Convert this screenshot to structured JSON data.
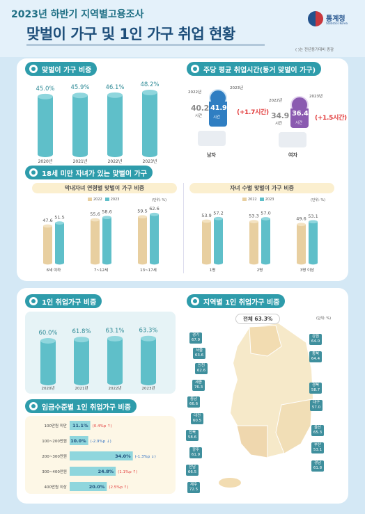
{
  "header": {
    "year_title": "2023년 하반기 지역별고용조사",
    "main_title": "맞벌이 가구 및 1인 가구 취업 현황",
    "agency": "통계청",
    "agency_en": "Statistics Korea",
    "note": "( )는 전년동기대비 증감"
  },
  "sections": {
    "dual_ratio": "맞벌이 가구 비중",
    "weekly_hours": "주당 평균 취업시간(동거 맞벌이 가구)",
    "children": "18세 미만 자녀가 있는 맞벌이 가구",
    "child_age": "막내자녀 연령별 맞벌이 가구 비중",
    "child_count": "자녀 수별 맞벌이 가구 비중",
    "single_ratio": "1인 취업가구 비중",
    "regional": "지역별 1인 취업가구 비중",
    "wage": "임금수준별 1인 취업가구 비중"
  },
  "legend": {
    "y2022": "2022",
    "y2023": "2023",
    "unit": "(단위: %)"
  },
  "hours": {
    "male": {
      "y2022_label": "2022년",
      "y2023_label": "2023년",
      "v2022": "40.2",
      "v2023": "41.9",
      "unit": "시간",
      "change": "(+1.7시간)",
      "label": "남자"
    },
    "female": {
      "y2022_label": "2022년",
      "y2023_label": "2023년",
      "v2022": "34.9",
      "v2023": "36.4",
      "unit": "시간",
      "change": "(+1.5시간)",
      "label": "여자"
    }
  },
  "regional": {
    "total": "전체 63.3%",
    "unit": "(단위: %)",
    "regions": [
      {
        "name": "경기",
        "value": "67.9"
      },
      {
        "name": "서울",
        "value": "63.6"
      },
      {
        "name": "인천",
        "value": "62.6"
      },
      {
        "name": "세종",
        "value": "76.3"
      },
      {
        "name": "충남",
        "value": "66.6"
      },
      {
        "name": "대전",
        "value": "60.5"
      },
      {
        "name": "전북",
        "value": "58.6"
      },
      {
        "name": "광주",
        "value": "61.9"
      },
      {
        "name": "전남",
        "value": "66.5"
      },
      {
        "name": "제주",
        "value": "72.5"
      },
      {
        "name": "강원",
        "value": "64.0"
      },
      {
        "name": "충북",
        "value": "64.4"
      },
      {
        "name": "경북",
        "value": "58.7"
      },
      {
        "name": "대구",
        "value": "57.0"
      },
      {
        "name": "울산",
        "value": "65.3"
      },
      {
        "name": "부산",
        "value": "53.1"
      },
      {
        "name": "경남",
        "value": "61.8"
      }
    ]
  },
  "chart_data": [
    {
      "type": "bar",
      "title": "맞벌이 가구 비중",
      "categories": [
        "2020년",
        "2021년",
        "2022년",
        "2023년"
      ],
      "values": [
        45.0,
        45.9,
        46.1,
        48.2
      ],
      "value_labels": [
        "45.0%",
        "45.9%",
        "46.1%",
        "48.2%"
      ],
      "ylim": [
        0,
        55
      ]
    },
    {
      "type": "bar",
      "title": "막내자녀 연령별 맞벌이 가구 비중",
      "categories": [
        "6세 이하",
        "7~12세",
        "13~17세"
      ],
      "series": [
        {
          "name": "2022",
          "values": [
            47.6,
            55.6,
            59.5
          ]
        },
        {
          "name": "2023",
          "values": [
            51.5,
            58.6,
            62.6
          ]
        }
      ],
      "ylim": [
        0,
        70
      ]
    },
    {
      "type": "bar",
      "title": "자녀 수별 맞벌이 가구 비중",
      "categories": [
        "1명",
        "2명",
        "3명 이상"
      ],
      "series": [
        {
          "name": "2022",
          "values": [
            53.9,
            53.3,
            49.6
          ]
        },
        {
          "name": "2023",
          "values": [
            57.2,
            57.0,
            53.1
          ]
        }
      ],
      "ylim": [
        0,
        70
      ]
    },
    {
      "type": "bar",
      "title": "1인 취업가구 비중",
      "categories": [
        "2020년",
        "2021년",
        "2022년",
        "2023년"
      ],
      "values": [
        60.0,
        61.8,
        63.1,
        63.3
      ],
      "value_labels": [
        "60.0%",
        "61.8%",
        "63.1%",
        "63.3%"
      ],
      "ylim": [
        0,
        70
      ]
    },
    {
      "type": "bar",
      "orientation": "horizontal",
      "title": "임금수준별 1인 취업가구 비중",
      "categories": [
        "100만원 미만",
        "100~200만원",
        "200~300만원",
        "300~400만원",
        "400만원 이상"
      ],
      "values": [
        11.1,
        10.0,
        34.0,
        24.8,
        20.0
      ],
      "value_labels": [
        "11.1%",
        "10.0%",
        "34.0%",
        "24.8%",
        "20.0%"
      ],
      "changes": [
        "(0.4%p ↑)",
        "(-2.9%p ↓)",
        "(-1.3%p ↓)",
        "(1.1%p ↑)",
        "(2.5%p ↑)"
      ],
      "xlim": [
        0,
        36
      ]
    }
  ],
  "colors": {
    "bar_teal": "#5fbfc9",
    "bar_2022": "#e8cfa0",
    "title_dark": "#1d4e7a",
    "accent_red": "#e23c3c",
    "section": "#2e9cab"
  }
}
